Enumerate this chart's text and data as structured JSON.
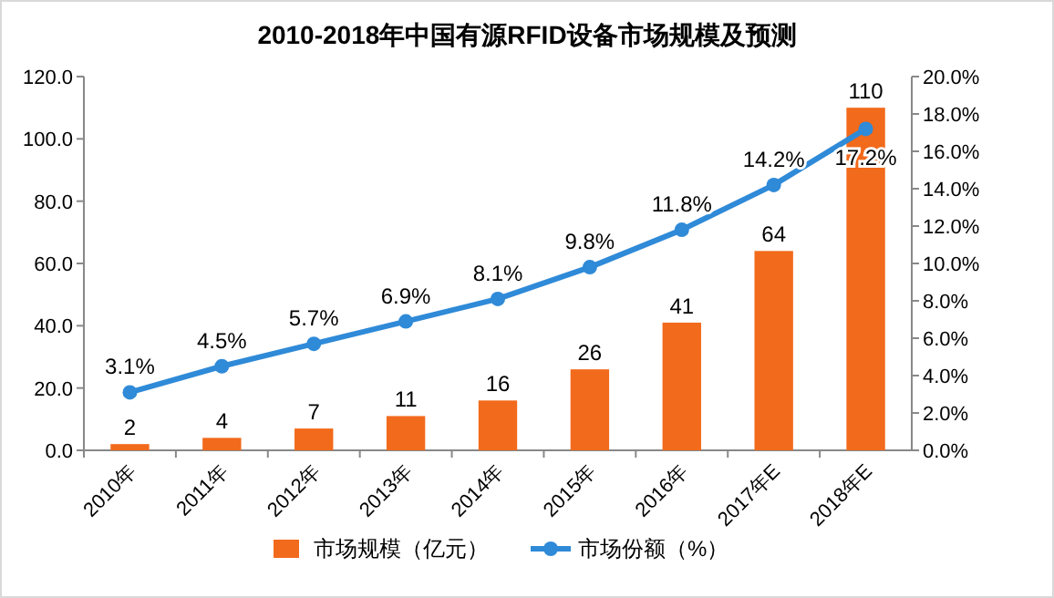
{
  "chart_data": {
    "type": "bar",
    "title": "2010-2018年中国有源RFID设备市场规模及预测",
    "categories": [
      "2010年",
      "2011年",
      "2012年",
      "2013年",
      "2014年",
      "2015年",
      "2016年",
      "2017年E",
      "2018年E"
    ],
    "series": [
      {
        "name": "市场规模（亿元）",
        "color": "#f26a1b",
        "values": [
          2,
          4,
          7,
          11,
          16,
          26,
          41,
          64,
          110
        ],
        "value_labels": [
          "2",
          "4",
          "7",
          "11",
          "16",
          "26",
          "41",
          "64",
          "110"
        ]
      },
      {
        "name": "市场份额（%）",
        "type": "line",
        "axis": "y2",
        "marker": "circle",
        "color": "#2f8ad8",
        "values": [
          3.1,
          4.5,
          5.7,
          6.9,
          8.1,
          9.8,
          11.8,
          14.2,
          17.2
        ],
        "value_labels": [
          "3.1%",
          "4.5%",
          "5.7%",
          "6.9%",
          "8.1%",
          "9.8%",
          "11.8%",
          "14.2%",
          "17.2%"
        ]
      }
    ],
    "ylim": [
      0,
      120
    ],
    "yticks": [
      {
        "value": 0,
        "label": "0.0"
      },
      {
        "value": 20,
        "label": "20.0"
      },
      {
        "value": 40,
        "label": "40.0"
      },
      {
        "value": 60,
        "label": "60.0"
      },
      {
        "value": 80,
        "label": "80.0"
      },
      {
        "value": 100,
        "label": "100.0"
      },
      {
        "value": 120,
        "label": "120.0"
      }
    ],
    "y2lim": [
      0,
      20
    ],
    "y2ticks": [
      {
        "value": 0,
        "label": "0.0%"
      },
      {
        "value": 2,
        "label": "2.0%"
      },
      {
        "value": 4,
        "label": "4.0%"
      },
      {
        "value": 6,
        "label": "6.0%"
      },
      {
        "value": 8,
        "label": "8.0%"
      },
      {
        "value": 10,
        "label": "10.0%"
      },
      {
        "value": 12,
        "label": "12.0%"
      },
      {
        "value": 14,
        "label": "14.0%"
      },
      {
        "value": 16,
        "label": "16.0%"
      },
      {
        "value": 18,
        "label": "18.0%"
      },
      {
        "value": 20,
        "label": "20.0%"
      }
    ],
    "legend": "bottom"
  }
}
